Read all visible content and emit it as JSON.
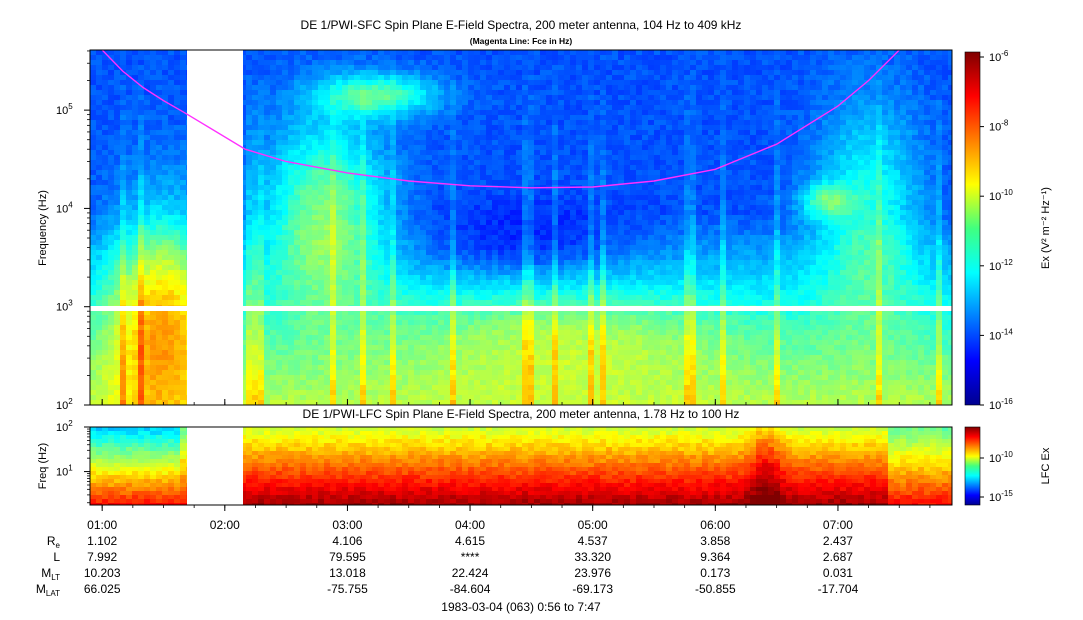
{
  "chart_data": [
    {
      "type": "heatmap",
      "title": "DE 1/PWI-SFC  Spin Plane E-Field Spectra, 200 meter antenna, 104 Hz to 409 kHz",
      "subtitle": "(Magenta Line: Fce in Hz)",
      "ylabel": "Frequency (Hz)",
      "yscale": "log",
      "ylim": [
        100,
        409000
      ],
      "yticks": [
        {
          "value": 100,
          "base": "10",
          "exp": "2"
        },
        {
          "value": 1000,
          "base": "10",
          "exp": "3"
        },
        {
          "value": 10000,
          "base": "10",
          "exp": "4"
        },
        {
          "value": 100000,
          "base": "10",
          "exp": "5"
        }
      ],
      "xlim_minutes": [
        56,
        467
      ],
      "data_gaps": [
        {
          "type": "time",
          "from": "1:40",
          "to": "2:07"
        },
        {
          "type": "frequency",
          "hz": 1000
        }
      ],
      "colorbar": {
        "label": "Ex (V² m⁻² Hz⁻¹)",
        "scale": "log",
        "range": [
          1e-16,
          1e-06
        ],
        "ticks": [
          {
            "base": "10",
            "exp": "-6"
          },
          {
            "base": "10",
            "exp": "-8"
          },
          {
            "base": "10",
            "exp": "-10"
          },
          {
            "base": "10",
            "exp": "-12"
          },
          {
            "base": "10",
            "exp": "-14"
          },
          {
            "base": "10",
            "exp": "-16"
          }
        ]
      },
      "fce_line": {
        "color": "#ff30ff",
        "points": [
          {
            "t": "1:00",
            "hz": 409000
          },
          {
            "t": "1:10",
            "hz": 250000
          },
          {
            "t": "1:20",
            "hz": 170000
          },
          {
            "t": "1:30",
            "hz": 125000
          },
          {
            "t": "1:40",
            "hz": 95000
          },
          {
            "t": "2:10",
            "hz": 40000
          },
          {
            "t": "2:30",
            "hz": 30000
          },
          {
            "t": "3:00",
            "hz": 23000
          },
          {
            "t": "3:30",
            "hz": 19000
          },
          {
            "t": "4:00",
            "hz": 17000
          },
          {
            "t": "4:30",
            "hz": 16200
          },
          {
            "t": "5:00",
            "hz": 16500
          },
          {
            "t": "5:30",
            "hz": 19000
          },
          {
            "t": "6:00",
            "hz": 25000
          },
          {
            "t": "6:30",
            "hz": 45000
          },
          {
            "t": "7:00",
            "hz": 110000
          },
          {
            "t": "7:15",
            "hz": 200000
          },
          {
            "t": "7:30",
            "hz": 409000
          }
        ]
      }
    },
    {
      "type": "heatmap",
      "title": "DE 1/PWI-LFC  Spin Plane E-Field Spectra, 200 meter antenna, 1.78 Hz to 100 Hz",
      "ylabel": "Freq (Hz)",
      "yscale": "log",
      "ylim": [
        1.78,
        100
      ],
      "yticks": [
        {
          "value": 10,
          "base": "10",
          "exp": "1"
        },
        {
          "value": 100,
          "base": "10",
          "exp": "2"
        }
      ],
      "data_gaps": [
        {
          "type": "time",
          "from": "1:40",
          "to": "2:07"
        }
      ],
      "colorbar": {
        "label": "LFC Ex",
        "scale": "log",
        "ticks": [
          {
            "base": "10",
            "exp": "-10"
          },
          {
            "base": "10",
            "exp": "-15"
          }
        ]
      }
    }
  ],
  "time_axis": {
    "ticks": [
      "01:00",
      "02:00",
      "03:00",
      "04:00",
      "05:00",
      "06:00",
      "07:00"
    ],
    "caption": "1983-03-04 (063) 0:56 to 7:47"
  },
  "ephemeris": {
    "labels": [
      {
        "main": "R",
        "sub": "e"
      },
      {
        "main": "L",
        "sub": ""
      },
      {
        "main": "M",
        "sub": "LT"
      },
      {
        "main": "M",
        "sub": "LAT"
      }
    ],
    "columns": [
      {
        "time": "01:00",
        "values": [
          "1.102",
          "7.992",
          "10.203",
          "66.025"
        ]
      },
      {
        "time": "03:00",
        "values": [
          "4.106",
          "79.595",
          "13.018",
          "-75.755"
        ]
      },
      {
        "time": "04:00",
        "values": [
          "4.615",
          "****",
          "22.424",
          "-84.604"
        ]
      },
      {
        "time": "05:00",
        "values": [
          "4.537",
          "33.320",
          "23.976",
          "-69.173"
        ]
      },
      {
        "time": "06:00",
        "values": [
          "3.858",
          "9.364",
          "0.173",
          "-50.855"
        ]
      },
      {
        "time": "07:00",
        "values": [
          "2.437",
          "2.687",
          "0.031",
          "-17.704"
        ]
      }
    ]
  }
}
